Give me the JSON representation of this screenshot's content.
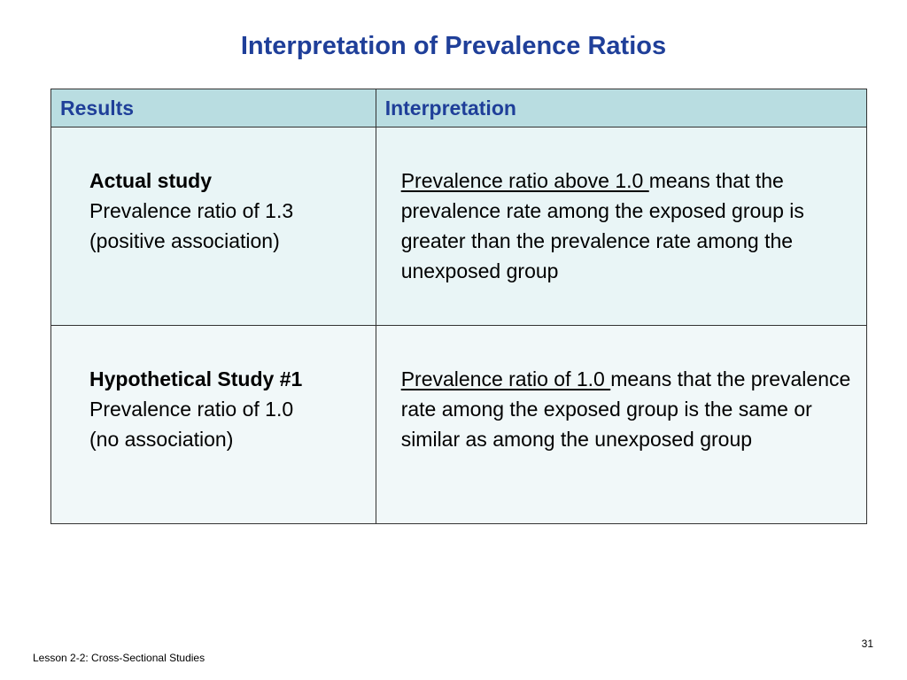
{
  "slide": {
    "title": "Interpretation of Prevalence Ratios",
    "colors": {
      "title": "#1f3f99",
      "header_bg": "#b9dde1",
      "row_bg": "#e9f5f6"
    }
  },
  "table": {
    "headers": [
      "Results",
      "Interpretation"
    ],
    "rows": [
      {
        "study": "Actual study",
        "result_line1": "Prevalence ratio of 1.3",
        "result_line2": "(positive  association)",
        "interp_underlined": "Prevalence ratio above 1.0 ",
        "interp_rest": "means that the prevalence rate among the exposed group is greater than the prevalence rate among the unexposed group"
      },
      {
        "study": "Hypothetical Study #1",
        "result_line1": "Prevalence ratio of 1.0",
        "result_line2": "(no association)",
        "interp_underlined": "Prevalence ratio  of 1.0 ",
        "interp_rest": "means that the prevalence rate among the exposed group is the same or similar as among the unexposed group"
      }
    ]
  },
  "footer": {
    "lesson": "Lesson 2-2: Cross-Sectional Studies",
    "page_number": "31"
  }
}
